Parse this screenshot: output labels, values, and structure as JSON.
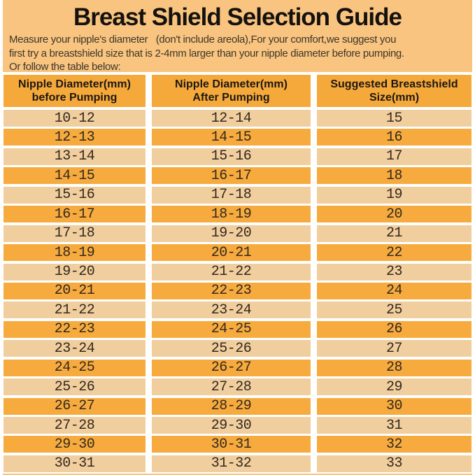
{
  "page": {
    "title": "Breast Shield Selection Guide",
    "intro_lines": [
      "Measure your nipple's diameter   (don't include areola),For your comfort,we suggest you",
      "first try a breastshield size that is 2-4mm larger than your nipple diameter before pumping.",
      "Or follow the table below:"
    ]
  },
  "colors": {
    "page_background": "#f8c47f",
    "header_row": "#f6a93b",
    "row_orange": "#f7ab3e",
    "row_light": "#f1ce9e",
    "intro_text": "#3f362b"
  },
  "chart_data": {
    "type": "table",
    "title": "Breast Shield Selection Guide",
    "columns": [
      "Nipple Diameter(mm)\nbefore Pumping",
      "Nipple Diameter(mm)\nAfter Pumping",
      "Suggested Breastshield\nSize(mm)"
    ],
    "rows": [
      [
        "10-12",
        "12-14",
        "15"
      ],
      [
        "12-13",
        "14-15",
        "16"
      ],
      [
        "13-14",
        "15-16",
        "17"
      ],
      [
        "14-15",
        "16-17",
        "18"
      ],
      [
        "15-16",
        "17-18",
        "19"
      ],
      [
        "16-17",
        "18-19",
        "20"
      ],
      [
        "17-18",
        "19-20",
        "21"
      ],
      [
        "18-19",
        "20-21",
        "22"
      ],
      [
        "19-20",
        "21-22",
        "23"
      ],
      [
        "20-21",
        "22-23",
        "24"
      ],
      [
        "21-22",
        "23-24",
        "25"
      ],
      [
        "22-23",
        "24-25",
        "26"
      ],
      [
        "23-24",
        "25-26",
        "27"
      ],
      [
        "24-25",
        "26-27",
        "28"
      ],
      [
        "25-26",
        "27-28",
        "29"
      ],
      [
        "26-27",
        "28-29",
        "30"
      ],
      [
        "27-28",
        "29-30",
        "31"
      ],
      [
        "29-30",
        "30-31",
        "32"
      ],
      [
        "30-31",
        "31-32",
        "33"
      ]
    ]
  }
}
